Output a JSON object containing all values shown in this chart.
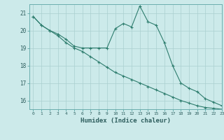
{
  "xlabel": "Humidex (Indice chaleur)",
  "ylabel": "",
  "background_color": "#cceaea",
  "line_color": "#2e7d6e",
  "grid_color": "#aacfcf",
  "xlim": [
    -0.5,
    23
  ],
  "ylim": [
    15.5,
    21.5
  ],
  "yticks": [
    16,
    17,
    18,
    19,
    20,
    21
  ],
  "xticks": [
    0,
    1,
    2,
    3,
    4,
    5,
    6,
    7,
    8,
    9,
    10,
    11,
    12,
    13,
    14,
    15,
    16,
    17,
    18,
    19,
    20,
    21,
    22,
    23
  ],
  "series1_x": [
    0,
    1,
    2,
    3,
    4,
    5,
    6,
    7,
    8,
    9,
    10,
    11,
    12,
    13,
    14,
    15,
    16,
    17,
    18,
    19,
    20,
    21,
    22,
    23
  ],
  "series1_y": [
    20.8,
    20.3,
    20.0,
    19.8,
    19.5,
    19.1,
    19.0,
    19.0,
    19.0,
    19.0,
    20.1,
    20.4,
    20.2,
    21.4,
    20.5,
    20.3,
    19.3,
    18.0,
    17.0,
    16.7,
    16.5,
    16.1,
    15.9,
    15.7
  ],
  "series2_x": [
    0,
    1,
    2,
    3,
    4,
    5,
    6,
    7,
    8,
    9,
    10,
    11,
    12,
    13,
    14,
    15,
    16,
    17,
    18,
    19,
    20,
    21,
    22,
    23
  ],
  "series2_y": [
    20.8,
    20.3,
    20.0,
    19.7,
    19.3,
    19.0,
    18.8,
    18.5,
    18.2,
    17.9,
    17.6,
    17.4,
    17.2,
    17.0,
    16.8,
    16.6,
    16.4,
    16.2,
    16.0,
    15.85,
    15.7,
    15.6,
    15.55,
    15.5
  ]
}
